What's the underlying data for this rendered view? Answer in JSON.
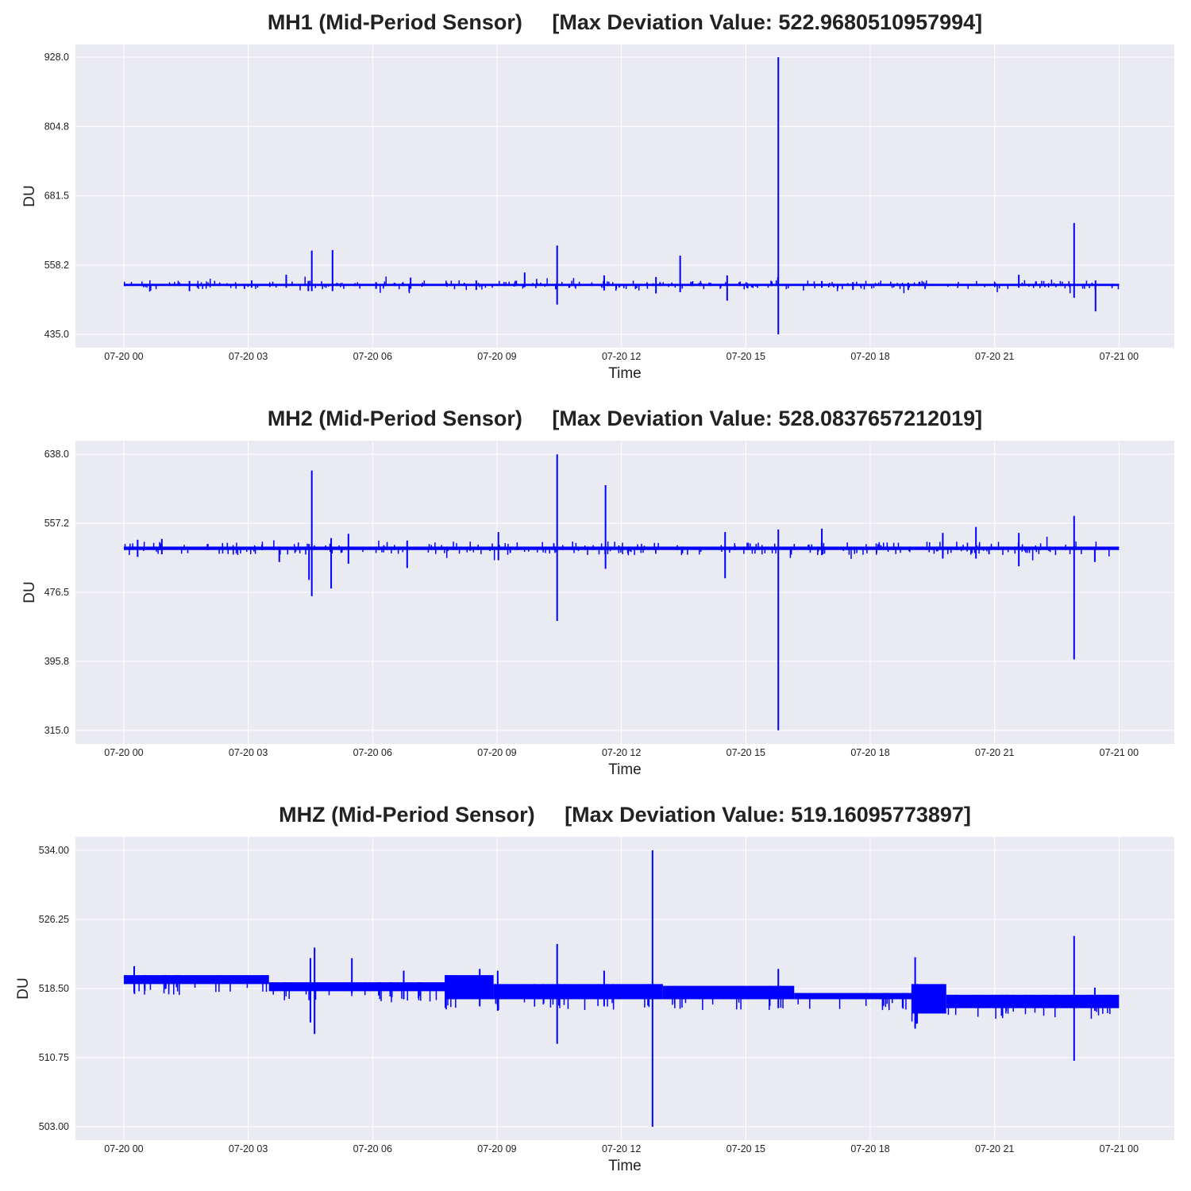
{
  "chart_data": [
    {
      "type": "line",
      "title": "MH1 (Mid-Period Sensor)     [Max Deviation Value: 522.9680510957994]",
      "xlabel": "Time",
      "ylabel": "DU",
      "xlim": [
        "2023-07-19 22:50",
        "2023-07-21 01:20"
      ],
      "x_ticks": [
        "07-20 00",
        "07-20 03",
        "07-20 06",
        "07-20 09",
        "07-20 12",
        "07-20 15",
        "07-20 18",
        "07-20 21",
        "07-21 00"
      ],
      "y_ticks": [
        "928.0",
        "804.8",
        "681.5",
        "558.2",
        "435.0"
      ],
      "ylim": [
        411.2,
        950.6
      ],
      "grid": true,
      "line_color": "#0000ff",
      "series": [
        {
          "baseline": 523,
          "band": 2,
          "x_range": [
            "2023-07-20 00:00",
            "2023-07-21 00:00"
          ],
          "spikes": [
            {
              "t": "2023-07-20 01:35",
              "high": 530,
              "low": 512
            },
            {
              "t": "2023-07-20 03:05",
              "high": 531,
              "low": 518
            },
            {
              "t": "2023-07-20 03:55",
              "high": 541,
              "low": 518
            },
            {
              "t": "2023-07-20 04:27",
              "high": 530,
              "low": 512
            },
            {
              "t": "2023-07-20 04:32",
              "high": 584,
              "low": 512
            },
            {
              "t": "2023-07-20 05:02",
              "high": 585,
              "low": 512
            },
            {
              "t": "2023-07-20 06:05",
              "high": 528,
              "low": 516
            },
            {
              "t": "2023-07-20 06:55",
              "high": 536,
              "low": 516
            },
            {
              "t": "2023-07-20 08:30",
              "high": 531,
              "low": 514
            },
            {
              "t": "2023-07-20 09:40",
              "high": 545,
              "low": 519
            },
            {
              "t": "2023-07-20 10:27",
              "high": 593,
              "low": 488
            },
            {
              "t": "2023-07-20 11:35",
              "high": 540,
              "low": 513
            },
            {
              "t": "2023-07-20 12:50",
              "high": 537,
              "low": 508
            },
            {
              "t": "2023-07-20 13:25",
              "high": 575,
              "low": 510
            },
            {
              "t": "2023-07-20 14:33",
              "high": 540,
              "low": 495
            },
            {
              "t": "2023-07-20 15:47",
              "high": 928,
              "low": 435
            },
            {
              "t": "2023-07-20 16:50",
              "high": 530,
              "low": 518
            },
            {
              "t": "2023-07-20 17:35",
              "high": 528,
              "low": 514
            },
            {
              "t": "2023-07-20 18:55",
              "high": 527,
              "low": 514
            },
            {
              "t": "2023-07-20 21:35",
              "high": 541,
              "low": 518
            },
            {
              "t": "2023-07-20 22:55",
              "high": 633,
              "low": 500
            },
            {
              "t": "2023-07-20 23:26",
              "high": 531,
              "low": 476
            }
          ]
        }
      ]
    },
    {
      "type": "line",
      "title": "MH2 (Mid-Period Sensor)     [Max Deviation Value: 528.0837657212019]",
      "xlabel": "Time",
      "ylabel": "DU",
      "xlim": [
        "2023-07-19 22:50",
        "2023-07-21 01:20"
      ],
      "x_ticks": [
        "07-20 00",
        "07-20 03",
        "07-20 06",
        "07-20 09",
        "07-20 12",
        "07-20 15",
        "07-20 18",
        "07-20 21",
        "07-21 00"
      ],
      "y_ticks": [
        "638.0",
        "557.2",
        "476.5",
        "395.8",
        "315.0"
      ],
      "ylim": [
        299.0,
        654.0
      ],
      "grid": true,
      "line_color": "#0000ff",
      "series": [
        {
          "baseline": 528,
          "band": 2,
          "x_range": [
            "2023-07-20 00:00",
            "2023-07-21 00:00"
          ],
          "spikes": [
            {
              "t": "2023-07-20 00:20",
              "high": 538,
              "low": 518
            },
            {
              "t": "2023-07-20 00:55",
              "high": 539,
              "low": 521
            },
            {
              "t": "2023-07-20 03:45",
              "high": 530,
              "low": 512
            },
            {
              "t": "2023-07-20 04:28",
              "high": 533,
              "low": 491
            },
            {
              "t": "2023-07-20 04:32",
              "high": 619,
              "low": 472
            },
            {
              "t": "2023-07-20 05:00",
              "high": 540,
              "low": 481
            },
            {
              "t": "2023-07-20 05:25",
              "high": 545,
              "low": 510
            },
            {
              "t": "2023-07-20 06:50",
              "high": 537,
              "low": 505
            },
            {
              "t": "2023-07-20 09:02",
              "high": 547,
              "low": 514
            },
            {
              "t": "2023-07-20 10:27",
              "high": 638,
              "low": 443
            },
            {
              "t": "2023-07-20 11:37",
              "high": 602,
              "low": 504
            },
            {
              "t": "2023-07-20 14:30",
              "high": 547,
              "low": 493
            },
            {
              "t": "2023-07-20 15:47",
              "high": 550,
              "low": 315
            },
            {
              "t": "2023-07-20 16:50",
              "high": 551,
              "low": 520
            },
            {
              "t": "2023-07-20 19:45",
              "high": 546,
              "low": 516
            },
            {
              "t": "2023-07-20 20:33",
              "high": 553,
              "low": 516
            },
            {
              "t": "2023-07-20 21:35",
              "high": 546,
              "low": 507
            },
            {
              "t": "2023-07-20 22:55",
              "high": 566,
              "low": 398
            },
            {
              "t": "2023-07-20 23:25",
              "high": 530,
              "low": 512
            }
          ]
        }
      ]
    },
    {
      "type": "line",
      "title": "MHZ (Mid-Period Sensor)     [Max Deviation Value: 519.16095773897]",
      "xlabel": "Time",
      "ylabel": "DU",
      "xlim": [
        "2023-07-19 22:50",
        "2023-07-21 01:20"
      ],
      "x_ticks": [
        "07-20 00",
        "07-20 03",
        "07-20 06",
        "07-20 09",
        "07-20 12",
        "07-20 15",
        "07-20 18",
        "07-20 21",
        "07-21 00"
      ],
      "y_ticks": [
        "534.00",
        "526.25",
        "518.50",
        "510.75",
        "503.00"
      ],
      "ylim": [
        501.5,
        535.5
      ],
      "grid": true,
      "line_color": "#0000ff",
      "series": [
        {
          "segments": [
            {
              "start": "2023-07-20 00:00",
              "end": "2023-07-20 03:30",
              "top": 520.0,
              "bottom": 519.0
            },
            {
              "start": "2023-07-20 03:30",
              "end": "2023-07-20 07:45",
              "top": 519.2,
              "bottom": 518.2
            },
            {
              "start": "2023-07-20 07:45",
              "end": "2023-07-20 08:55",
              "top": 520.0,
              "bottom": 517.3
            },
            {
              "start": "2023-07-20 08:55",
              "end": "2023-07-20 13:00",
              "top": 519.0,
              "bottom": 517.3
            },
            {
              "start": "2023-07-20 13:00",
              "end": "2023-07-20 16:10",
              "top": 518.8,
              "bottom": 517.3
            },
            {
              "start": "2023-07-20 16:10",
              "end": "2023-07-20 19:00",
              "top": 518.0,
              "bottom": 517.3
            },
            {
              "start": "2023-07-20 19:00",
              "end": "2023-07-20 19:50",
              "top": 519.0,
              "bottom": 515.7
            },
            {
              "start": "2023-07-20 19:50",
              "end": "2023-07-21 00:00",
              "top": 517.8,
              "bottom": 516.3
            }
          ],
          "spikes": [
            {
              "t": "2023-07-20 00:15",
              "high": 521.0,
              "low": 518.0
            },
            {
              "t": "2023-07-20 04:30",
              "high": 521.9,
              "low": 514.7
            },
            {
              "t": "2023-07-20 04:36",
              "high": 523.1,
              "low": 513.4
            },
            {
              "t": "2023-07-20 05:30",
              "high": 521.9,
              "low": 518.0
            },
            {
              "t": "2023-07-20 06:45",
              "high": 520.5,
              "low": 517.3
            },
            {
              "t": "2023-07-20 08:35",
              "high": 520.7,
              "low": 516.5
            },
            {
              "t": "2023-07-20 09:01",
              "high": 520.5,
              "low": 516.0
            },
            {
              "t": "2023-07-20 10:27",
              "high": 523.5,
              "low": 512.3
            },
            {
              "t": "2023-07-20 11:35",
              "high": 520.5,
              "low": 516.5
            },
            {
              "t": "2023-07-20 12:45",
              "high": 534.0,
              "low": 503.0
            },
            {
              "t": "2023-07-20 15:47",
              "high": 520.7,
              "low": 516.3
            },
            {
              "t": "2023-07-20 19:05",
              "high": 522.0,
              "low": 514.0
            },
            {
              "t": "2023-07-20 22:55",
              "high": 524.4,
              "low": 510.4
            },
            {
              "t": "2023-07-20 23:25",
              "high": 518.6,
              "low": 516.0
            }
          ]
        }
      ]
    }
  ]
}
